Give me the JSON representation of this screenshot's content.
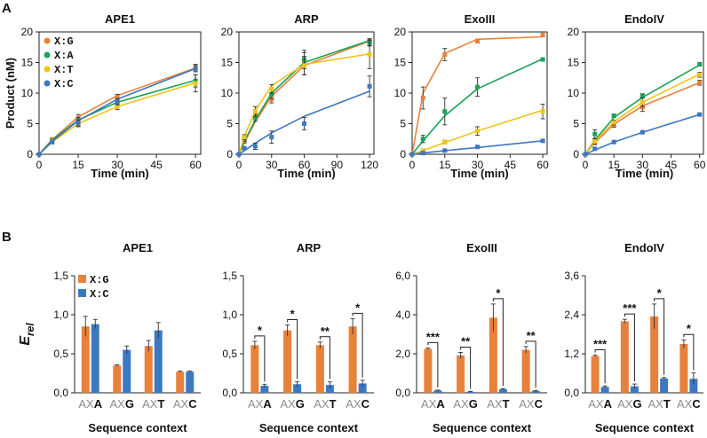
{
  "panel_labels": [
    "A",
    "B"
  ],
  "chart_data": [
    {
      "type": "line",
      "panel": "A",
      "title": "APE1",
      "xlabel": "Time (min)",
      "ylabel": "Product (nM)",
      "xlim": [
        0,
        62
      ],
      "ylim": [
        0,
        20
      ],
      "xticks": [
        0,
        15,
        30,
        45,
        60
      ],
      "yticks": [
        0,
        5,
        10,
        15,
        20
      ],
      "x": [
        0,
        5,
        15,
        30,
        60
      ],
      "legend": "top-left",
      "series": [
        {
          "name": "X:G",
          "color": "#e8813a",
          "values": [
            0,
            2.4,
            5.9,
            9.3,
            14.1
          ],
          "errors": [
            0,
            0.3,
            0.6,
            0.5,
            0.6
          ],
          "fit": [
            0,
            2.4,
            6.1,
            9.6,
            14.1
          ]
        },
        {
          "name": "X:A",
          "color": "#1aa358",
          "values": [
            0,
            2.2,
            5.5,
            8.3,
            12.0
          ],
          "errors": [
            0,
            0.3,
            0.5,
            0.5,
            1.0
          ],
          "fit": [
            0,
            2.3,
            5.6,
            8.5,
            12.1
          ]
        },
        {
          "name": "X:T",
          "color": "#f0c419",
          "values": [
            0,
            2.1,
            4.9,
            7.8,
            11.6
          ],
          "errors": [
            0,
            0.3,
            0.4,
            0.5,
            1.4
          ],
          "fit": [
            0,
            2.0,
            5.0,
            7.8,
            11.7
          ]
        },
        {
          "name": "X:C",
          "color": "#3d78c2",
          "values": [
            0,
            2.0,
            5.1,
            8.6,
            14.0
          ],
          "errors": [
            0,
            0.3,
            0.5,
            0.5,
            0.5
          ],
          "fit": [
            0,
            2.1,
            5.5,
            9.0,
            14.0
          ]
        }
      ]
    },
    {
      "type": "line",
      "panel": "A",
      "title": "ARP",
      "xlabel": "Time (min)",
      "ylabel": "",
      "xlim": [
        0,
        124
      ],
      "ylim": [
        0,
        20
      ],
      "xticks": [
        0,
        30,
        60,
        90,
        120
      ],
      "yticks": [
        0,
        5,
        10,
        15,
        20
      ],
      "x": [
        0,
        5,
        15,
        30,
        60,
        120
      ],
      "series": [
        {
          "name": "X:G",
          "color": "#e8813a",
          "values": [
            0,
            2.2,
            6.3,
            9.0,
            14.8,
            18.3
          ],
          "errors": [
            0,
            0.4,
            0.6,
            0.6,
            1.8,
            0.6
          ],
          "fit": [
            0,
            1.9,
            5.3,
            9.5,
            14.5,
            18.5
          ]
        },
        {
          "name": "X:A",
          "color": "#1aa358",
          "values": [
            0,
            2.5,
            6.0,
            9.8,
            15.5,
            18.3
          ],
          "errors": [
            0,
            0.4,
            0.6,
            0.7,
            1.5,
            0.5
          ],
          "fit": [
            0,
            2.1,
            5.6,
            10.0,
            15.0,
            18.6
          ]
        },
        {
          "name": "X:T",
          "color": "#f0c419",
          "values": [
            0,
            2.8,
            7.0,
            10.7,
            14.5,
            16.3
          ],
          "errors": [
            0,
            0.4,
            0.8,
            0.7,
            1.5,
            2.3
          ],
          "fit": [
            0,
            2.9,
            7.1,
            11.2,
            14.7,
            16.4
          ]
        },
        {
          "name": "X:C",
          "color": "#3d78c2",
          "values": [
            0,
            1.0,
            1.3,
            2.8,
            5.0,
            11.1
          ],
          "errors": [
            0,
            0.2,
            0.5,
            1.0,
            1.0,
            1.7
          ],
          "fit": [
            0,
            0.6,
            1.8,
            3.5,
            6.2,
            10.3
          ]
        }
      ]
    },
    {
      "type": "line",
      "panel": "A",
      "title": "ExoIII",
      "xlabel": "Time (min)",
      "ylabel": "",
      "xlim": [
        0,
        62
      ],
      "ylim": [
        0,
        20
      ],
      "xticks": [
        0,
        15,
        30,
        45,
        60
      ],
      "yticks": [
        0,
        5,
        10,
        15,
        20
      ],
      "x": [
        0,
        5,
        15,
        30,
        60
      ],
      "series": [
        {
          "name": "X:G",
          "color": "#e8813a",
          "values": [
            0,
            9.2,
            16.3,
            18.5,
            19.5
          ],
          "errors": [
            0,
            1.8,
            1.0,
            0.3,
            0.3
          ],
          "fit": [
            0,
            10.0,
            16.5,
            18.8,
            19.2
          ]
        },
        {
          "name": "X:A",
          "color": "#1aa358",
          "values": [
            0,
            2.5,
            7.0,
            11.0,
            15.5
          ],
          "errors": [
            0,
            0.6,
            2.2,
            1.5,
            0.2
          ],
          "fit": [
            0,
            2.2,
            6.3,
            10.7,
            15.6
          ]
        },
        {
          "name": "X:T",
          "color": "#f0c419",
          "values": [
            0,
            0.6,
            2.0,
            3.8,
            7.0
          ],
          "errors": [
            0,
            0.2,
            0.3,
            0.7,
            1.2
          ],
          "fit": [
            0,
            0.6,
            1.9,
            3.8,
            7.2
          ]
        },
        {
          "name": "X:C",
          "color": "#3d78c2",
          "values": [
            0,
            0.2,
            0.6,
            1.2,
            2.2
          ],
          "errors": [
            0,
            0.1,
            0.1,
            0.1,
            0.2
          ],
          "fit": [
            0,
            0.2,
            0.6,
            1.1,
            2.2
          ]
        }
      ]
    },
    {
      "type": "line",
      "panel": "A",
      "title": "EndoIV",
      "xlabel": "Time (min)",
      "ylabel": "",
      "xlim": [
        0,
        62
      ],
      "ylim": [
        0,
        20
      ],
      "xticks": [
        0,
        15,
        30,
        45,
        60
      ],
      "yticks": [
        0,
        5,
        10,
        15,
        20
      ],
      "x": [
        0,
        5,
        15,
        30,
        60
      ],
      "series": [
        {
          "name": "X:G",
          "color": "#e8813a",
          "values": [
            0,
            2.0,
            4.8,
            7.7,
            11.7
          ],
          "errors": [
            0,
            0.4,
            0.4,
            0.7,
            0.4
          ],
          "fit": [
            0,
            1.9,
            4.9,
            7.9,
            11.7
          ]
        },
        {
          "name": "X:A",
          "color": "#1aa358",
          "values": [
            0,
            3.3,
            6.3,
            9.6,
            14.7
          ],
          "errors": [
            0,
            0.7,
            0.3,
            0.3,
            0.3
          ],
          "fit": [
            0,
            2.3,
            6.0,
            9.3,
            14.6
          ]
        },
        {
          "name": "X:T",
          "color": "#f0c419",
          "values": [
            0,
            2.1,
            5.2,
            8.5,
            13.0
          ],
          "errors": [
            0,
            0.4,
            0.4,
            0.7,
            0.4
          ],
          "fit": [
            0,
            2.1,
            5.3,
            8.5,
            13.1
          ]
        },
        {
          "name": "X:C",
          "color": "#3d78c2",
          "values": [
            0,
            0.9,
            2.0,
            3.6,
            6.5
          ],
          "errors": [
            0,
            0.2,
            0.2,
            0.1,
            0.2
          ],
          "fit": [
            0,
            0.7,
            2.0,
            3.6,
            6.5
          ]
        }
      ]
    },
    {
      "type": "bar",
      "panel": "B",
      "title": "APE1",
      "xlabel": "Sequence context",
      "ylabel": "E_rel",
      "ylim": [
        0,
        1.5
      ],
      "yticks": [
        "0,0",
        "0,5",
        "1,0",
        "1,5"
      ],
      "ytick_values": [
        0,
        0.5,
        1.0,
        1.5
      ],
      "categories": [
        "AXA",
        "AXG",
        "AXT",
        "AXC"
      ],
      "legend": "top-left",
      "series": [
        {
          "name": "X:G",
          "color": "#e8813a",
          "values": [
            0.85,
            0.35,
            0.6,
            0.27
          ],
          "errors": [
            0.13,
            0.01,
            0.07,
            0.01
          ]
        },
        {
          "name": "X:C",
          "color": "#3d78c2",
          "values": [
            0.88,
            0.55,
            0.8,
            0.27
          ],
          "errors": [
            0.06,
            0.05,
            0.1,
            0.01
          ]
        }
      ],
      "significance": [
        "",
        "",
        "",
        ""
      ]
    },
    {
      "type": "bar",
      "panel": "B",
      "title": "ARP",
      "xlabel": "Sequence context",
      "ylabel": "",
      "ylim": [
        0,
        1.5
      ],
      "yticks": [
        "0,0",
        "0,5",
        "1,0",
        "1,5"
      ],
      "ytick_values": [
        0,
        0.5,
        1.0,
        1.5
      ],
      "categories": [
        "AXA",
        "AXG",
        "AXT",
        "AXC"
      ],
      "series": [
        {
          "name": "X:G",
          "color": "#e8813a",
          "values": [
            0.61,
            0.8,
            0.61,
            0.85
          ],
          "errors": [
            0.05,
            0.07,
            0.04,
            0.1
          ]
        },
        {
          "name": "X:C",
          "color": "#3d78c2",
          "values": [
            0.09,
            0.11,
            0.1,
            0.12
          ],
          "errors": [
            0.02,
            0.03,
            0.04,
            0.04
          ]
        }
      ],
      "significance": [
        "*",
        "*",
        "**",
        "*"
      ]
    },
    {
      "type": "bar",
      "panel": "B",
      "title": "ExoIII",
      "xlabel": "Sequence context",
      "ylabel": "",
      "ylim": [
        0,
        6.0
      ],
      "yticks": [
        "0,0",
        "2,0",
        "4,0",
        "6,0"
      ],
      "ytick_values": [
        0,
        2.0,
        4.0,
        6.0
      ],
      "categories": [
        "AXA",
        "AXG",
        "AXT",
        "AXC"
      ],
      "series": [
        {
          "name": "X:G",
          "color": "#e8813a",
          "values": [
            2.25,
            1.92,
            3.85,
            2.2
          ],
          "errors": [
            0.05,
            0.15,
            0.7,
            0.17
          ]
        },
        {
          "name": "X:C",
          "color": "#3d78c2",
          "values": [
            0.12,
            0.05,
            0.18,
            0.1
          ],
          "errors": [
            0.02,
            0.02,
            0.03,
            0.02
          ]
        }
      ],
      "significance": [
        "***",
        "**",
        "*",
        "**"
      ]
    },
    {
      "type": "bar",
      "panel": "B",
      "title": "EndoIV",
      "xlabel": "Sequence context",
      "ylabel": "",
      "ylim": [
        0,
        3.6
      ],
      "yticks": [
        "0,0",
        "1,2",
        "2,4",
        "3,6"
      ],
      "ytick_values": [
        0,
        1.2,
        2.4,
        3.6
      ],
      "categories": [
        "AXA",
        "AXG",
        "AXT",
        "AXC"
      ],
      "series": [
        {
          "name": "X:G",
          "color": "#e8813a",
          "values": [
            1.13,
            2.2,
            2.35,
            1.5
          ],
          "errors": [
            0.03,
            0.06,
            0.38,
            0.13
          ]
        },
        {
          "name": "X:C",
          "color": "#3d78c2",
          "values": [
            0.18,
            0.2,
            0.44,
            0.43
          ],
          "errors": [
            0.03,
            0.07,
            0.03,
            0.18
          ]
        }
      ],
      "significance": [
        "***",
        "***",
        "*",
        "*"
      ]
    }
  ]
}
